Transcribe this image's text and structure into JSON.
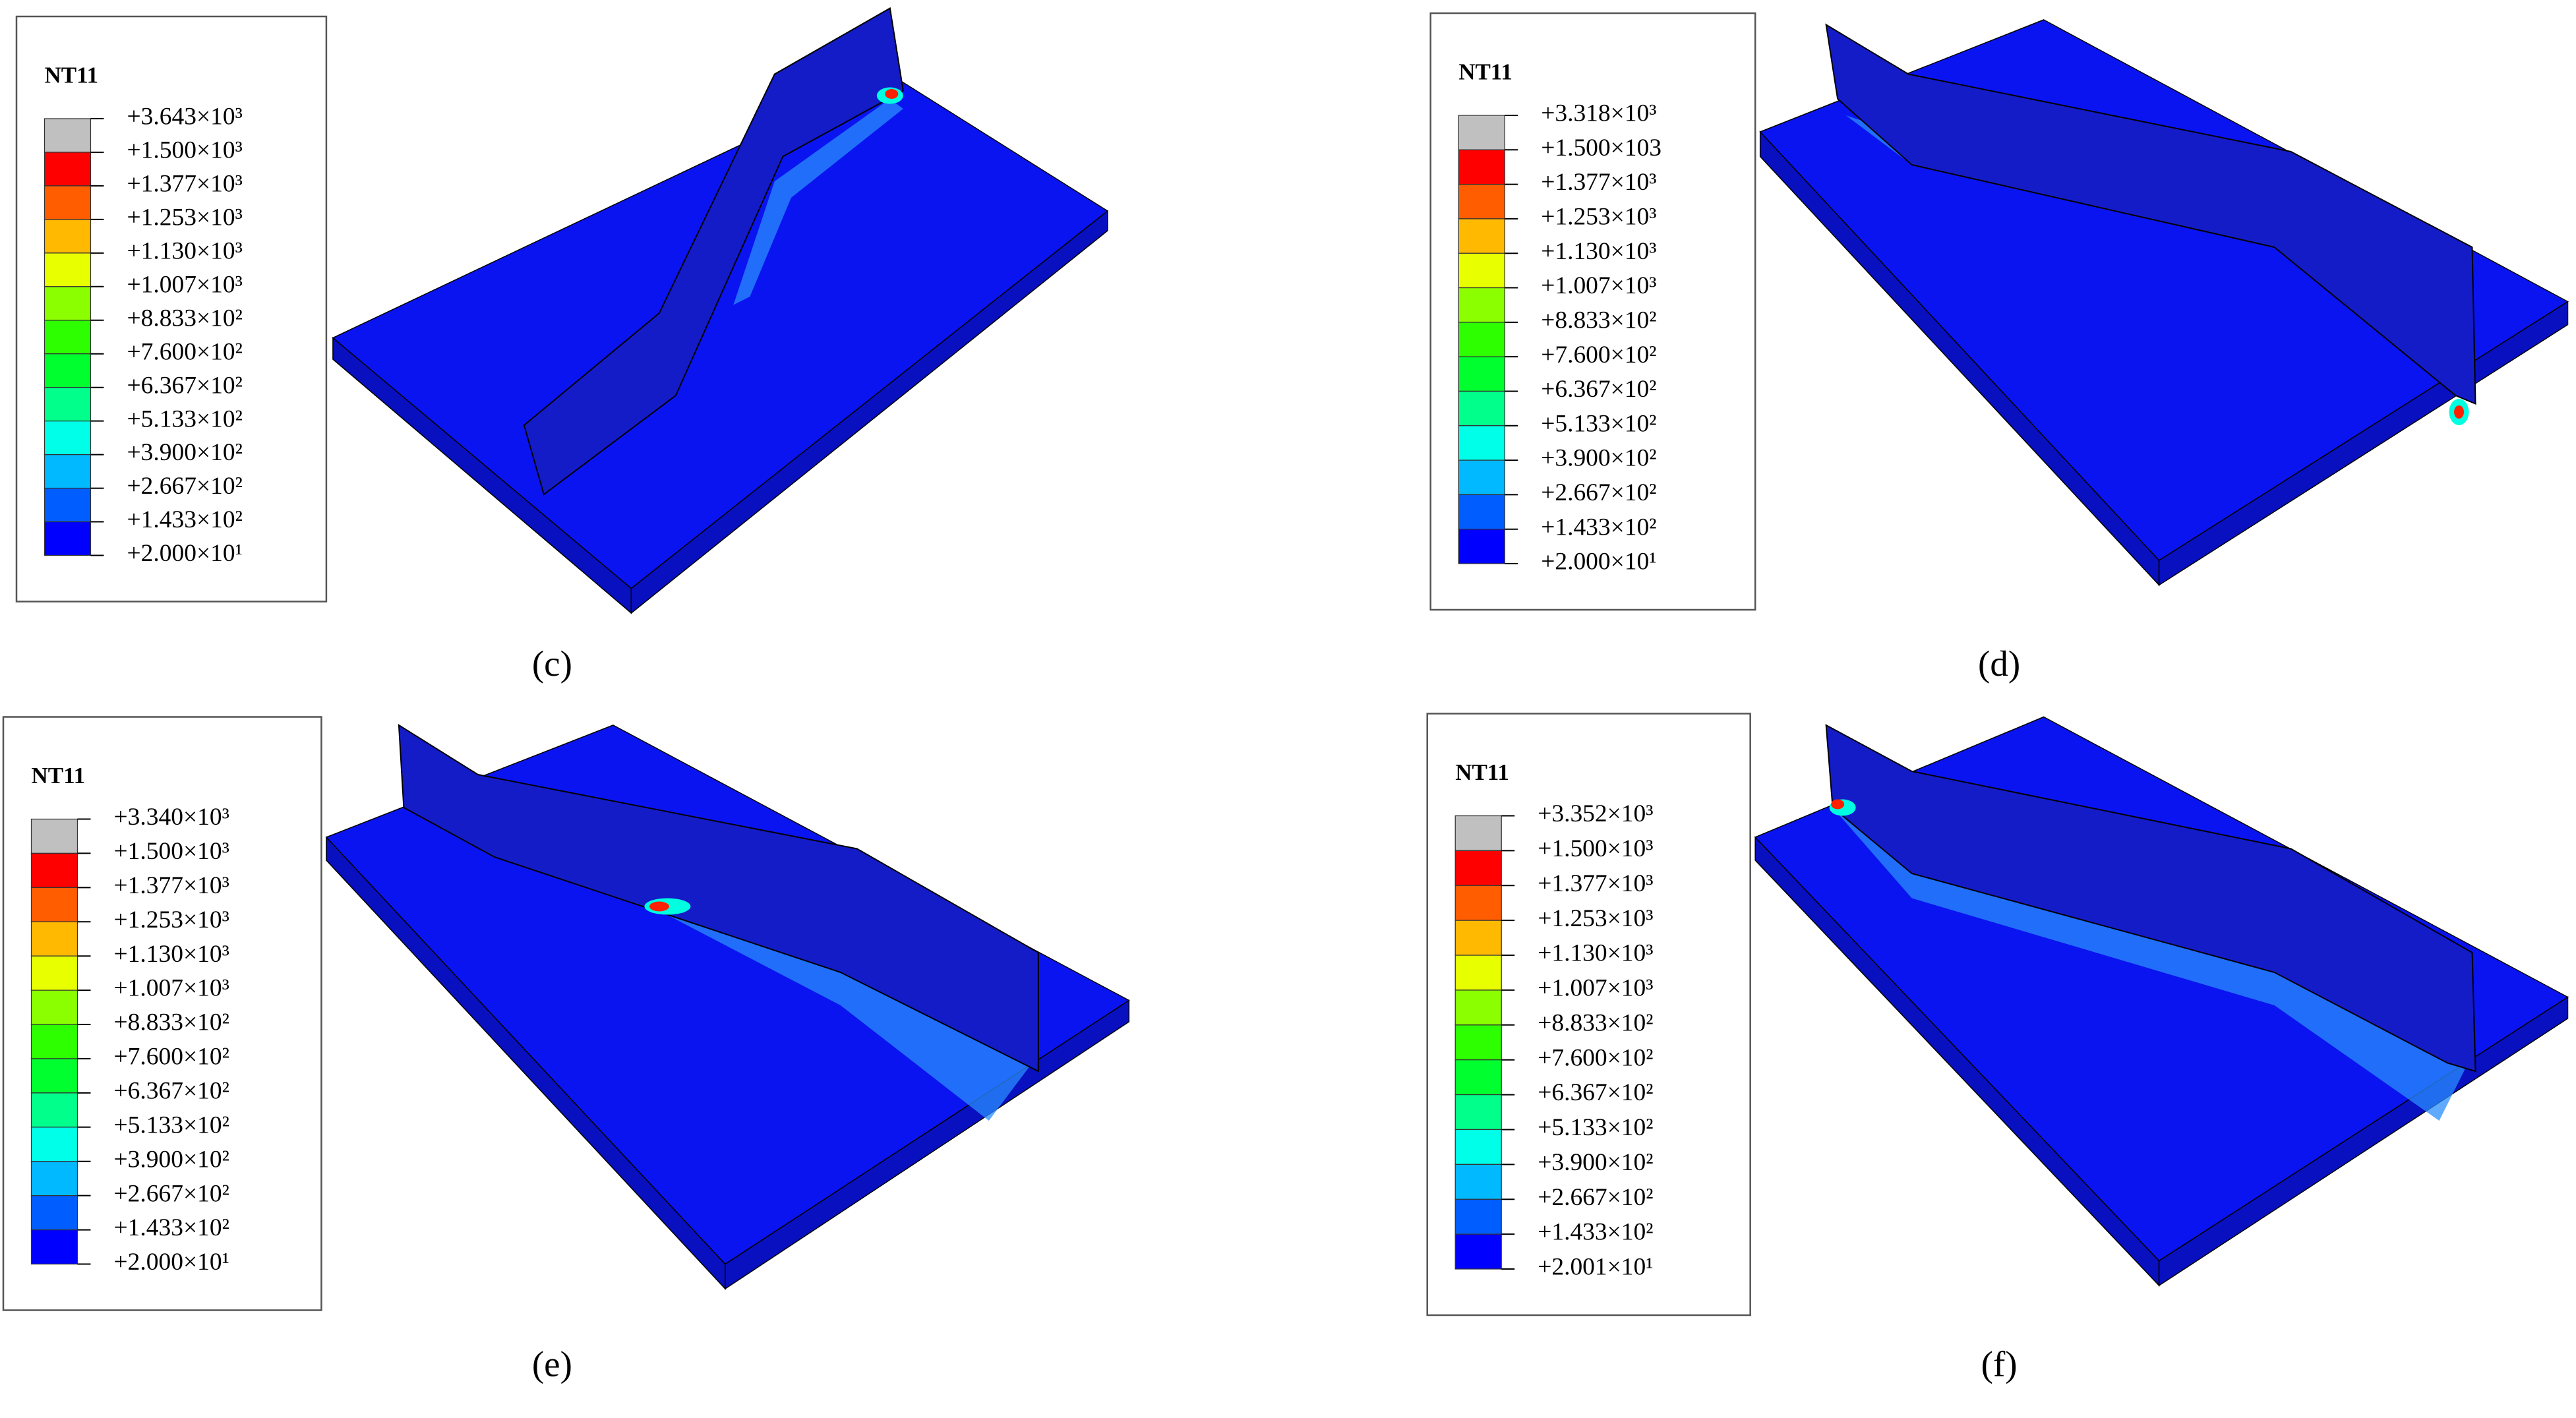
{
  "panels": [
    {
      "caption": "(c)",
      "legend": {
        "title": "NT11",
        "labels": [
          "+3.643×10³",
          "+1.500×10³",
          "+1.377×10³",
          "+1.253×10³",
          "+1.130×10³",
          "+1.007×10³",
          "+8.833×10²",
          "+7.600×10²",
          "+6.367×10²",
          "+5.133×10²",
          "+3.900×10²",
          "+2.667×10²",
          "+1.433×10²",
          "+2.000×10¹"
        ]
      }
    },
    {
      "caption": "(d)",
      "legend": {
        "title": "NT11",
        "labels": [
          "+3.318×10³",
          "+1.500×103",
          "+1.377×10³",
          "+1.253×10³",
          "+1.130×10³",
          "+1.007×10³",
          "+8.833×10²",
          "+7.600×10²",
          "+6.367×10²",
          "+5.133×10²",
          "+3.900×10²",
          "+2.667×10²",
          "+1.433×10²",
          "+2.000×10¹"
        ]
      }
    },
    {
      "caption": "(e)",
      "legend": {
        "title": "NT11",
        "labels": [
          "+3.340×10³",
          "+1.500×10³",
          "+1.377×10³",
          "+1.253×10³",
          "+1.130×10³",
          "+1.007×10³",
          "+8.833×10²",
          "+7.600×10²",
          "+6.367×10²",
          "+5.133×10²",
          "+3.900×10²",
          "+2.667×10²",
          "+1.433×10²",
          "+2.000×10¹"
        ]
      }
    },
    {
      "caption": "(f)",
      "legend": {
        "title": "NT11",
        "labels": [
          "+3.352×10³",
          "+1.500×10³",
          "+1.377×10³",
          "+1.253×10³",
          "+1.130×10³",
          "+1.007×10³",
          "+8.833×10²",
          "+7.600×10²",
          "+6.367×10²",
          "+5.133×10²",
          "+3.900×10²",
          "+2.667×10²",
          "+1.433×10²",
          "+2.001×10¹"
        ]
      }
    }
  ]
}
